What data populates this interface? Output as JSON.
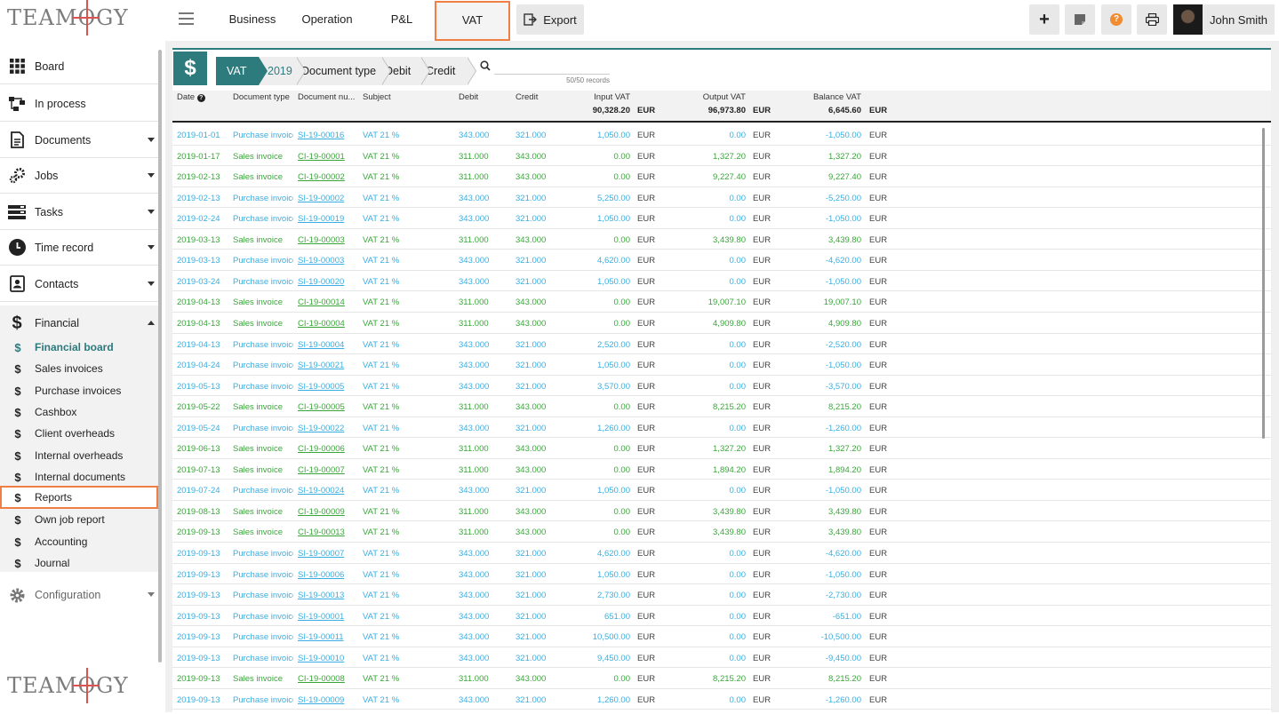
{
  "brand": {
    "logo_text_a": "TEAM",
    "logo_text_o": "O",
    "logo_text_b": "GY"
  },
  "topnav": {
    "tabs": [
      {
        "label": "Business"
      },
      {
        "label": "Operation"
      },
      {
        "label": "P&L"
      },
      {
        "label": "VAT"
      }
    ],
    "export_label": "Export",
    "plus_glyph": "+",
    "help_glyph": "?",
    "user_name": "John Smith"
  },
  "sidebar": {
    "items": [
      {
        "label": "Board",
        "icon": "grid-icon"
      },
      {
        "label": "In process",
        "icon": "flow-icon"
      },
      {
        "label": "Documents",
        "icon": "document-icon"
      },
      {
        "label": "Jobs",
        "icon": "gears-icon"
      },
      {
        "label": "Tasks",
        "icon": "tasks-icon"
      },
      {
        "label": "Time record",
        "icon": "clock-icon"
      },
      {
        "label": "Contacts",
        "icon": "contacts-icon"
      },
      {
        "label": "Financial",
        "icon": "dollar-icon"
      }
    ],
    "financial_sub": [
      "Financial board",
      "Sales invoices",
      "Purchase invoices",
      "Cashbox",
      "Client overheads",
      "Internal overheads",
      "Internal documents",
      "Reports",
      "Own job report",
      "Accounting",
      "Journal"
    ],
    "configuration_label": "Configuration"
  },
  "breadcrumb": {
    "module_glyph": "$",
    "items": [
      "VAT",
      "2019",
      "Document type",
      "Debit",
      "Credit"
    ]
  },
  "search": {
    "placeholder": "",
    "value": "",
    "records": "50/50 records"
  },
  "table": {
    "headers": {
      "date": "Date",
      "doc_type": "Document type",
      "doc_number": "Document nu...",
      "subject": "Subject",
      "debit": "Debit",
      "credit": "Credit",
      "input_vat": "Input VAT",
      "output_vat": "Output VAT",
      "balance_vat": "Balance VAT"
    },
    "totals": {
      "input_vat": "90,328.20",
      "output_vat": "96,973.80",
      "balance_vat": "6,645.60",
      "currency": "EUR"
    },
    "colors": {
      "purchase": "#3aaee0",
      "sales": "#3aa63a"
    },
    "rows": [
      [
        "2019-01-01",
        "Purchase invoice",
        "SI-19-00016",
        "VAT 21 %",
        "343.000",
        "321.000",
        "1,050.00",
        "0.00",
        "-1,050.00",
        "p"
      ],
      [
        "2019-01-17",
        "Sales invoice",
        "CI-19-00001",
        "VAT 21 %",
        "311.000",
        "343.000",
        "0.00",
        "1,327.20",
        "1,327.20",
        "s"
      ],
      [
        "2019-02-13",
        "Sales invoice",
        "CI-19-00002",
        "VAT 21 %",
        "311.000",
        "343.000",
        "0.00",
        "9,227.40",
        "9,227.40",
        "s"
      ],
      [
        "2019-02-13",
        "Purchase invoice",
        "SI-19-00002",
        "VAT 21 %",
        "343.000",
        "321.000",
        "5,250.00",
        "0.00",
        "-5,250.00",
        "p"
      ],
      [
        "2019-02-24",
        "Purchase invoice",
        "SI-19-00019",
        "VAT 21 %",
        "343.000",
        "321.000",
        "1,050.00",
        "0.00",
        "-1,050.00",
        "p"
      ],
      [
        "2019-03-13",
        "Sales invoice",
        "CI-19-00003",
        "VAT 21 %",
        "311.000",
        "343.000",
        "0.00",
        "3,439.80",
        "3,439.80",
        "s"
      ],
      [
        "2019-03-13",
        "Purchase invoice",
        "SI-19-00003",
        "VAT 21 %",
        "343.000",
        "321.000",
        "4,620.00",
        "0.00",
        "-4,620.00",
        "p"
      ],
      [
        "2019-03-24",
        "Purchase invoice",
        "SI-19-00020",
        "VAT 21 %",
        "343.000",
        "321.000",
        "1,050.00",
        "0.00",
        "-1,050.00",
        "p"
      ],
      [
        "2019-04-13",
        "Sales invoice",
        "CI-19-00014",
        "VAT 21 %",
        "311.000",
        "343.000",
        "0.00",
        "19,007.10",
        "19,007.10",
        "s"
      ],
      [
        "2019-04-13",
        "Sales invoice",
        "CI-19-00004",
        "VAT 21 %",
        "311.000",
        "343.000",
        "0.00",
        "4,909.80",
        "4,909.80",
        "s"
      ],
      [
        "2019-04-13",
        "Purchase invoice",
        "SI-19-00004",
        "VAT 21 %",
        "343.000",
        "321.000",
        "2,520.00",
        "0.00",
        "-2,520.00",
        "p"
      ],
      [
        "2019-04-24",
        "Purchase invoice",
        "SI-19-00021",
        "VAT 21 %",
        "343.000",
        "321.000",
        "1,050.00",
        "0.00",
        "-1,050.00",
        "p"
      ],
      [
        "2019-05-13",
        "Purchase invoice",
        "SI-19-00005",
        "VAT 21 %",
        "343.000",
        "321.000",
        "3,570.00",
        "0.00",
        "-3,570.00",
        "p"
      ],
      [
        "2019-05-22",
        "Sales invoice",
        "CI-19-00005",
        "VAT 21 %",
        "311.000",
        "343.000",
        "0.00",
        "8,215.20",
        "8,215.20",
        "s"
      ],
      [
        "2019-05-24",
        "Purchase invoice",
        "SI-19-00022",
        "VAT 21 %",
        "343.000",
        "321.000",
        "1,260.00",
        "0.00",
        "-1,260.00",
        "p"
      ],
      [
        "2019-06-13",
        "Sales invoice",
        "CI-19-00006",
        "VAT 21 %",
        "311.000",
        "343.000",
        "0.00",
        "1,327.20",
        "1,327.20",
        "s"
      ],
      [
        "2019-07-13",
        "Sales invoice",
        "CI-19-00007",
        "VAT 21 %",
        "311.000",
        "343.000",
        "0.00",
        "1,894.20",
        "1,894.20",
        "s"
      ],
      [
        "2019-07-24",
        "Purchase invoice",
        "SI-19-00024",
        "VAT 21 %",
        "343.000",
        "321.000",
        "1,050.00",
        "0.00",
        "-1,050.00",
        "p"
      ],
      [
        "2019-08-13",
        "Sales invoice",
        "CI-19-00009",
        "VAT 21 %",
        "311.000",
        "343.000",
        "0.00",
        "3,439.80",
        "3,439.80",
        "s"
      ],
      [
        "2019-09-13",
        "Sales invoice",
        "CI-19-00013",
        "VAT 21 %",
        "311.000",
        "343.000",
        "0.00",
        "3,439.80",
        "3,439.80",
        "s"
      ],
      [
        "2019-09-13",
        "Purchase invoice",
        "SI-19-00007",
        "VAT 21 %",
        "343.000",
        "321.000",
        "4,620.00",
        "0.00",
        "-4,620.00",
        "p"
      ],
      [
        "2019-09-13",
        "Purchase invoice",
        "SI-19-00006",
        "VAT 21 %",
        "343.000",
        "321.000",
        "1,050.00",
        "0.00",
        "-1,050.00",
        "p"
      ],
      [
        "2019-09-13",
        "Purchase invoice",
        "SI-19-00013",
        "VAT 21 %",
        "343.000",
        "321.000",
        "2,730.00",
        "0.00",
        "-2,730.00",
        "p"
      ],
      [
        "2019-09-13",
        "Purchase invoice",
        "SI-19-00001",
        "VAT 21 %",
        "343.000",
        "321.000",
        "651.00",
        "0.00",
        "-651.00",
        "p"
      ],
      [
        "2019-09-13",
        "Purchase invoice",
        "SI-19-00011",
        "VAT 21 %",
        "343.000",
        "321.000",
        "10,500.00",
        "0.00",
        "-10,500.00",
        "p"
      ],
      [
        "2019-09-13",
        "Purchase invoice",
        "SI-19-00010",
        "VAT 21 %",
        "343.000",
        "321.000",
        "9,450.00",
        "0.00",
        "-9,450.00",
        "p"
      ],
      [
        "2019-09-13",
        "Sales invoice",
        "CI-19-00008",
        "VAT 21 %",
        "311.000",
        "343.000",
        "0.00",
        "8,215.20",
        "8,215.20",
        "s"
      ],
      [
        "2019-09-13",
        "Purchase invoice",
        "SI-19-00009",
        "VAT 21 %",
        "343.000",
        "321.000",
        "1,260.00",
        "0.00",
        "-1,260.00",
        "p"
      ]
    ]
  }
}
